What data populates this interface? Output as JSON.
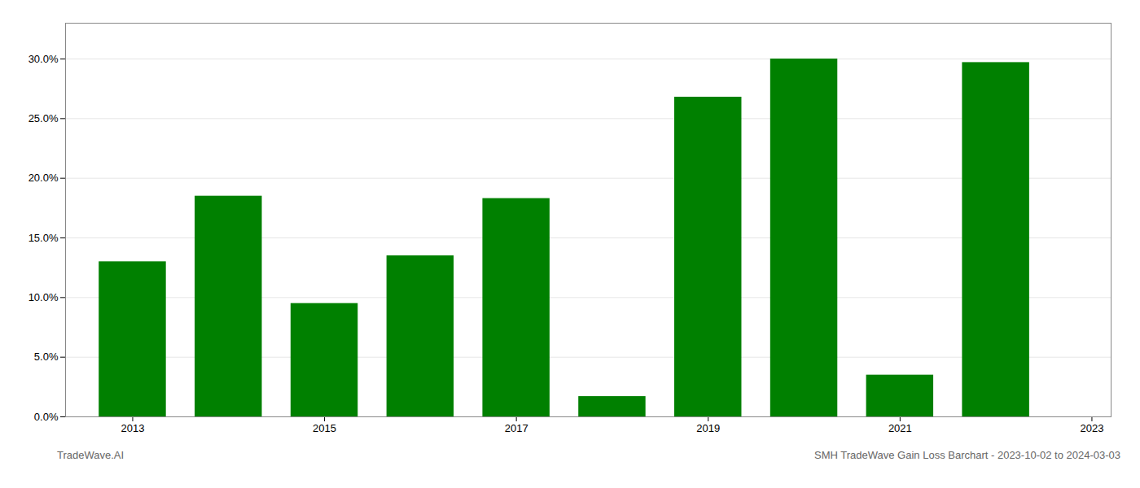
{
  "chart_data": {
    "type": "bar",
    "x": [
      2013,
      2014,
      2015,
      2016,
      2017,
      2018,
      2019,
      2020,
      2021,
      2022
    ],
    "values": [
      0.13,
      0.185,
      0.095,
      0.135,
      0.183,
      0.017,
      0.268,
      0.3,
      0.035,
      0.297
    ],
    "color": "#008000",
    "xlim": [
      2012.3,
      2023.2
    ],
    "xticks": [
      2013,
      2015,
      2017,
      2019,
      2021,
      2023
    ],
    "ylim": [
      0,
      0.33
    ],
    "yticks": [
      {
        "value": 0.0,
        "label": "0.0%"
      },
      {
        "value": 0.05,
        "label": "5.0%"
      },
      {
        "value": 0.1,
        "label": "10.0%"
      },
      {
        "value": 0.15,
        "label": "15.0%"
      },
      {
        "value": 0.2,
        "label": "20.0%"
      },
      {
        "value": 0.25,
        "label": "25.0%"
      },
      {
        "value": 0.3,
        "label": "30.0%"
      }
    ],
    "grid": true,
    "annotations": [
      "TradeWave.AI",
      "SMH TradeWave Gain Loss Barchart - 2023-10-02 to 2024-03-03"
    ]
  }
}
